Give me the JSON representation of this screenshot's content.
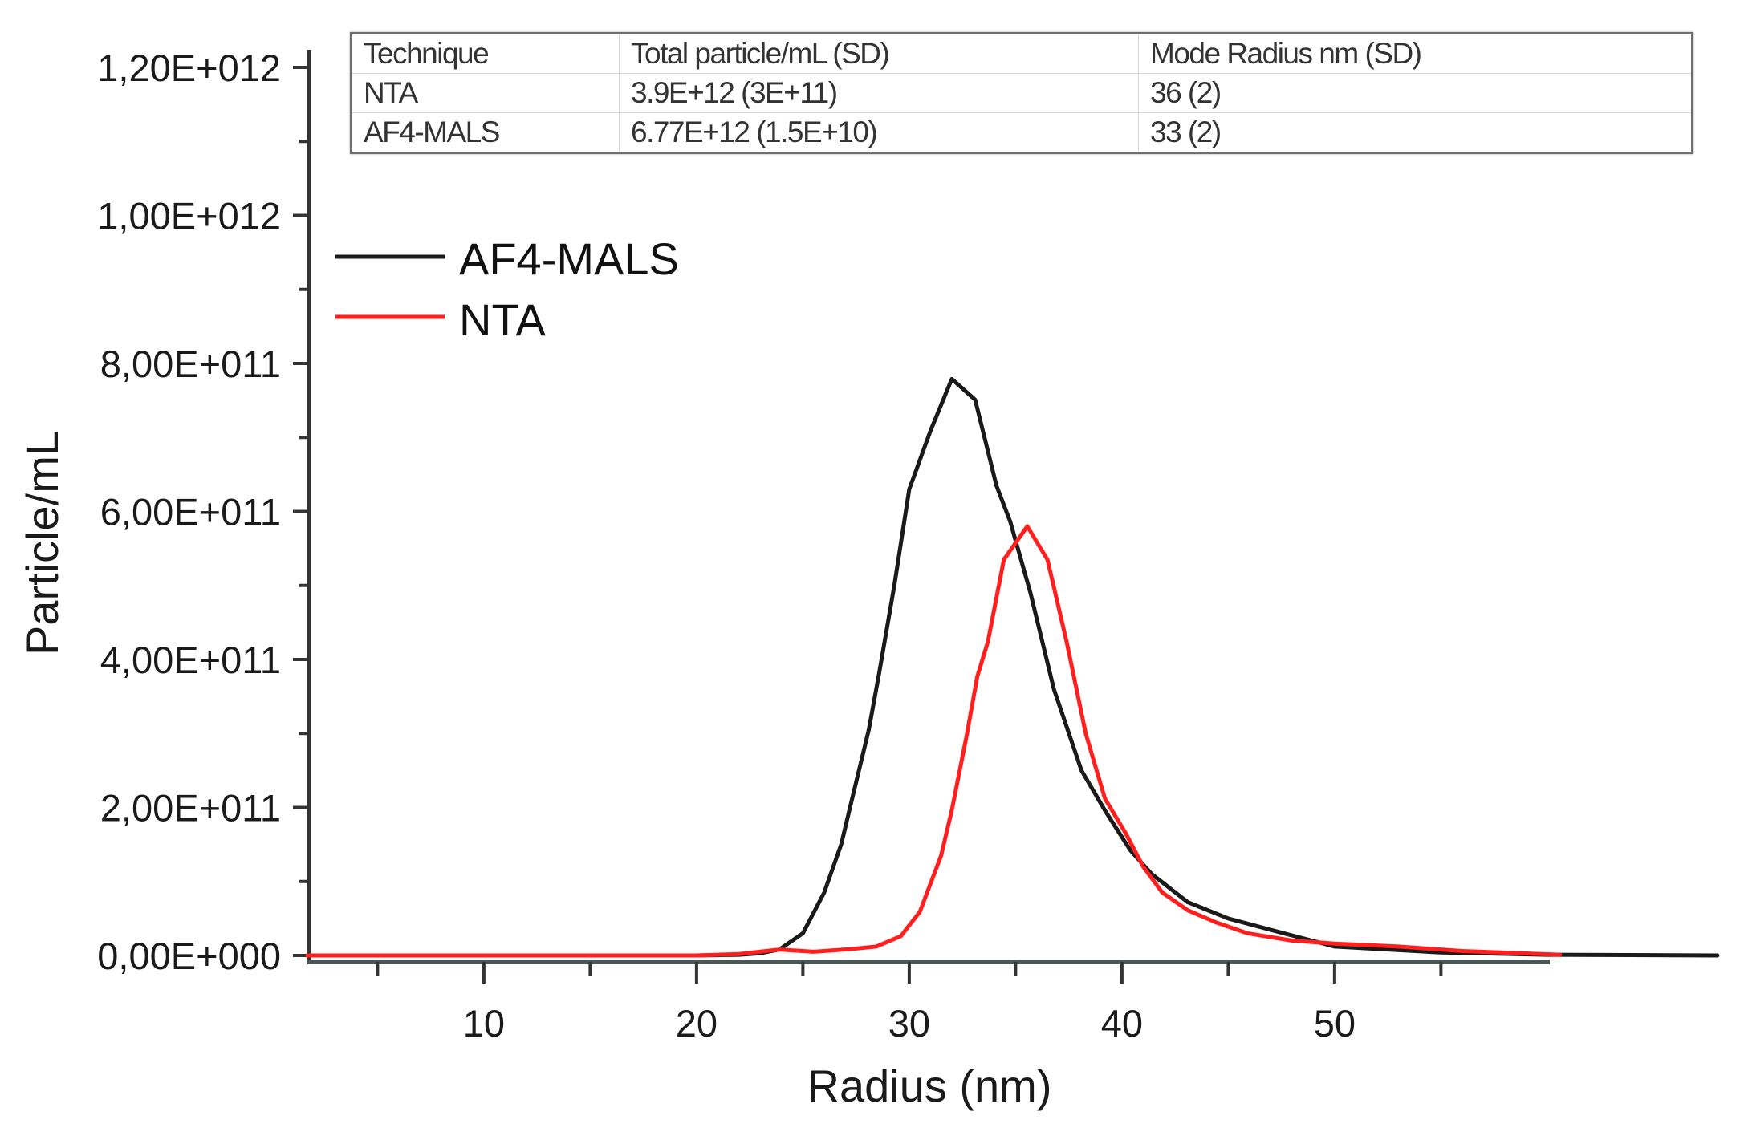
{
  "table": {
    "headers": [
      "Technique",
      "Total particle/mL (SD)",
      "Mode Radius nm (SD)"
    ],
    "rows": [
      [
        "NTA",
        "3.9E+12 (3E+11)",
        "36 (2)"
      ],
      [
        "AF4-MALS",
        "6.77E+12 (1.5E+10)",
        "33 (2)"
      ]
    ]
  },
  "legend": {
    "items": [
      {
        "label": "AF4-MALS",
        "color": "#1a1a1a"
      },
      {
        "label": "NTA",
        "color": "#ff1f1f"
      }
    ]
  },
  "axes": {
    "xlabel": "Radius (nm)",
    "ylabel": "Particle/mL",
    "yticks": [
      "0,00E+000",
      "2,00E+011",
      "4,00E+011",
      "6,00E+011",
      "8,00E+011",
      "1,00E+012",
      "1,20E+012"
    ],
    "xticks": [
      "10",
      "20",
      "30",
      "40",
      "50"
    ]
  },
  "chart_data": {
    "type": "line",
    "title": "",
    "xlabel": "Radius (nm)",
    "ylabel": "Particle/mL",
    "xlim": [
      1.7,
      60
    ],
    "ylim": [
      0,
      1200000000000.0
    ],
    "grid": false,
    "legend_position": "upper-left",
    "y_tick_values": [
      0,
      200000000000.0,
      400000000000.0,
      600000000000.0,
      800000000000.0,
      1000000000000.0,
      1200000000000.0
    ],
    "x_tick_values": [
      10,
      20,
      30,
      40,
      50
    ],
    "series": [
      {
        "name": "AF4-MALS",
        "color": "#1a1a1a",
        "x": [
          1.7,
          10,
          20,
          22,
          23,
          23.9,
          25.0,
          26.0,
          26.8,
          27.3,
          28.1,
          28.6,
          29.3,
          30.0,
          31.0,
          32.0,
          33.1,
          34.1,
          34.75,
          35.7,
          36.8,
          38.1,
          39.2,
          40.4,
          41.4,
          43.1,
          45.0,
          47.6,
          50.0,
          55.0,
          60.0,
          68.0
        ],
        "y": [
          0,
          0,
          0,
          1000000000.0,
          3000000000.0,
          8000000000.0,
          30000000000.0,
          85000000000.0,
          150000000000.0,
          210000000000.0,
          305000000000.0,
          384000000000.0,
          500000000000.0,
          630000000000.0,
          709000000000.0,
          779000000000.0,
          751000000000.0,
          635000000000.0,
          586000000000.0,
          490000000000.0,
          360000000000.0,
          250000000000.0,
          196000000000.0,
          142000000000.0,
          110000000000.0,
          72000000000.0,
          50000000000.0,
          30000000000.0,
          12000000000.0,
          4000000000.0,
          1000000000.0,
          0
        ]
      },
      {
        "name": "NTA",
        "color": "#ff1f1f",
        "x": [
          1.7,
          10,
          20,
          22,
          23.9,
          25.5,
          27.4,
          28.45,
          29.6,
          30.5,
          31.5,
          32.0,
          32.7,
          33.2,
          33.7,
          34.45,
          35.55,
          36.5,
          37.4,
          38.3,
          39.2,
          40.2,
          41.0,
          41.9,
          43.1,
          44.4,
          45.9,
          48.0,
          50.0,
          53.0,
          56.0,
          60.6
        ],
        "y": [
          0,
          0,
          0,
          2000000000.0,
          8000000000.0,
          5000000000.0,
          9000000000.0,
          12000000000.0,
          26000000000.0,
          59000000000.0,
          135000000000.0,
          196000000000.0,
          297000000000.0,
          377000000000.0,
          424000000000.0,
          535000000000.0,
          580000000000.0,
          535000000000.0,
          424000000000.0,
          300000000000.0,
          212000000000.0,
          164000000000.0,
          120000000000.0,
          85000000000.0,
          61000000000.0,
          45000000000.0,
          30000000000.0,
          20000000000.0,
          16000000000.0,
          12000000000.0,
          6000000000.0,
          1000000000.0
        ]
      }
    ],
    "inset_table": {
      "columns": [
        "Technique",
        "Total particle/mL (SD)",
        "Mode Radius nm (SD)"
      ],
      "rows": [
        [
          "NTA",
          "3.9E+12 (3E+11)",
          "36 (2)"
        ],
        [
          "AF4-MALS",
          "6.77E+12 (1.5E+10)",
          "33 (2)"
        ]
      ]
    }
  }
}
